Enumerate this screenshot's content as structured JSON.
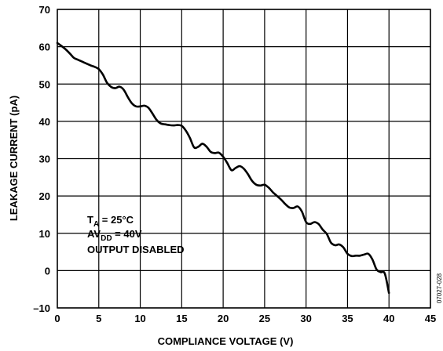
{
  "chart_data": {
    "type": "line",
    "xlabel": "COMPLIANCE VOLTAGE (V)",
    "ylabel": "LEAKAGE CURRENT (pA)",
    "xlim": [
      0,
      45
    ],
    "ylim": [
      -10,
      70
    ],
    "x_ticks": [
      "0",
      "5",
      "10",
      "15",
      "20",
      "25",
      "30",
      "35",
      "40",
      "45"
    ],
    "y_ticks": [
      "70",
      "60",
      "50",
      "40",
      "30",
      "20",
      "10",
      "0",
      "–10"
    ],
    "grid": true,
    "annotation": {
      "line1_main": "T",
      "line1_sub": "A",
      "line1_rest": " = 25°C",
      "line2_main": "AV",
      "line2_sub": "DD",
      "line2_rest": " = 40V",
      "line3": "OUTPUT DISABLED"
    },
    "figure_id": "07027-028",
    "series": [
      {
        "color": "#000000",
        "x": [
          0,
          0.5,
          1,
          1.5,
          2,
          2.5,
          3,
          3.5,
          4,
          4.5,
          5,
          5.5,
          6,
          6.5,
          7,
          7.5,
          8,
          8.5,
          9,
          9.5,
          10,
          10.5,
          11,
          11.5,
          12,
          12.5,
          13,
          13.5,
          14,
          14.5,
          15,
          15.5,
          16,
          16.5,
          17,
          17.5,
          18,
          18.5,
          19,
          19.5,
          20,
          20.5,
          21,
          21.5,
          22,
          22.5,
          23,
          23.5,
          24,
          24.5,
          25,
          25.5,
          26,
          26.5,
          27,
          27.5,
          28,
          28.5,
          29,
          29.5,
          30,
          30.5,
          31,
          31.5,
          32,
          32.5,
          33,
          33.5,
          34,
          34.5,
          35,
          35.5,
          36,
          36.5,
          37,
          37.5,
          38,
          38.5,
          39,
          39.5,
          40
        ],
        "y": [
          61,
          60.2,
          59.3,
          58.2,
          57,
          56.5,
          56,
          55.5,
          55,
          54.6,
          54,
          52.5,
          50.3,
          49.2,
          48.9,
          49.3,
          48.5,
          46.5,
          44.8,
          44,
          44,
          44.2,
          43.6,
          42,
          40.3,
          39.4,
          39.2,
          39,
          38.9,
          39,
          38.8,
          37.5,
          35.5,
          33,
          33.2,
          34,
          33.2,
          31.8,
          31.5,
          31.6,
          30.5,
          28.8,
          26.9,
          27.5,
          28,
          27.3,
          25.8,
          24,
          23,
          22.8,
          23,
          22.2,
          21,
          20,
          19,
          17.8,
          16.9,
          16.8,
          17.2,
          15.8,
          13,
          12.5,
          13,
          12.5,
          11,
          9.8,
          7.5,
          6.8,
          7,
          6.2,
          4.5,
          3.9,
          4,
          4,
          4.3,
          4.5,
          3,
          0.3,
          -0.4,
          -0.8,
          -6
        ]
      }
    ]
  }
}
